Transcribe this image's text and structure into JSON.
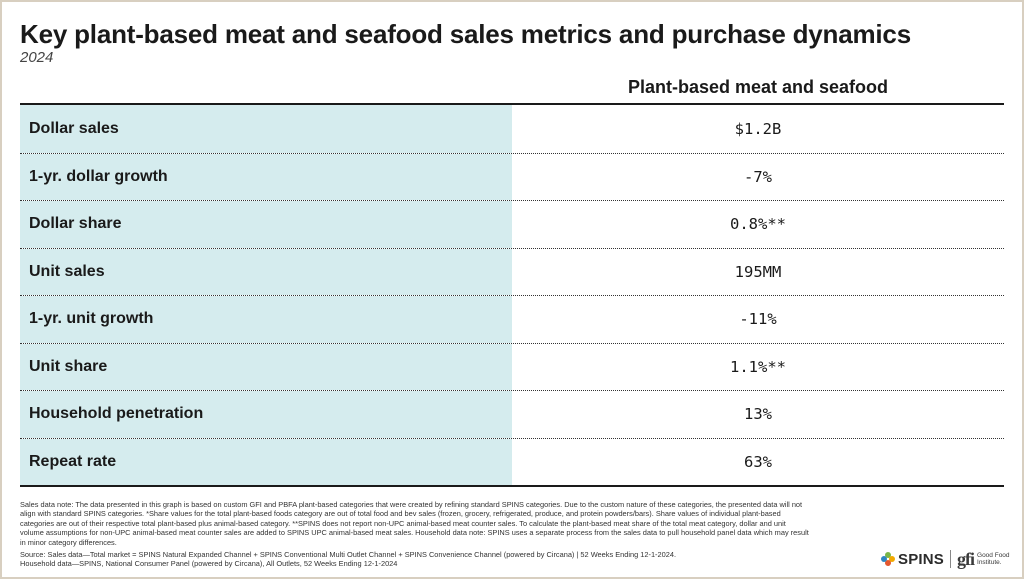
{
  "title": "Key plant-based meat and seafood sales metrics and purchase dynamics",
  "subtitle": "2024",
  "chart_data": {
    "type": "table",
    "column_header": "Plant-based meat and seafood",
    "rows": [
      {
        "label": "Dollar sales",
        "value": "$1.2B"
      },
      {
        "label": "1-yr. dollar growth",
        "value": "-7%"
      },
      {
        "label": "Dollar share",
        "value": "0.8%**"
      },
      {
        "label": "Unit sales",
        "value": "195MM"
      },
      {
        "label": "1-yr. unit growth",
        "value": "-11%"
      },
      {
        "label": "Unit share",
        "value": "1.1%**"
      },
      {
        "label": "Household penetration",
        "value": "13%"
      },
      {
        "label": "Repeat rate",
        "value": "63%"
      }
    ]
  },
  "notes": "Sales data note: The data presented in this graph is based on custom GFI and PBFA plant-based categories that were created by refining standard SPINS categories. Due to the custom nature of these categories, the presented data will not align with standard SPINS categories. *Share values for the total plant-based foods category are out of total food and bev sales (frozen, grocery, refrigerated, produce, and protein powders/bars). Share values of individual plant-based categories are out of their respective total plant-based plus animal-based category. **SPINS does not report non-UPC animal-based meat counter sales. To calculate the plant-based meat share of the total meat category, dollar and unit volume assumptions for non-UPC animal-based meat counter sales are added to SPINS UPC animal-based meat sales. Household data note: SPINS uses a separate process from the sales data to pull household panel data which may result in minor category differences.",
  "source_line1": "Source: Sales data—Total market = SPINS Natural Expanded Channel + SPINS Conventional Multi Outlet Channel + SPINS Convenience Channel (powered by Circana) | 52 Weeks Ending 12-1-2024.",
  "source_line2": "Household data—SPINS, National Consumer Panel (powered by Circana), All Outlets, 52 Weeks Ending 12-1-2024",
  "logos": {
    "spins_text": "SPINS",
    "gfi_mark": "gfi",
    "gfi_text": "Good Food Institute."
  },
  "colors": {
    "label_bg": "#d5ecee",
    "border": "#1a1a1a",
    "frame": "#d8cfc0"
  }
}
